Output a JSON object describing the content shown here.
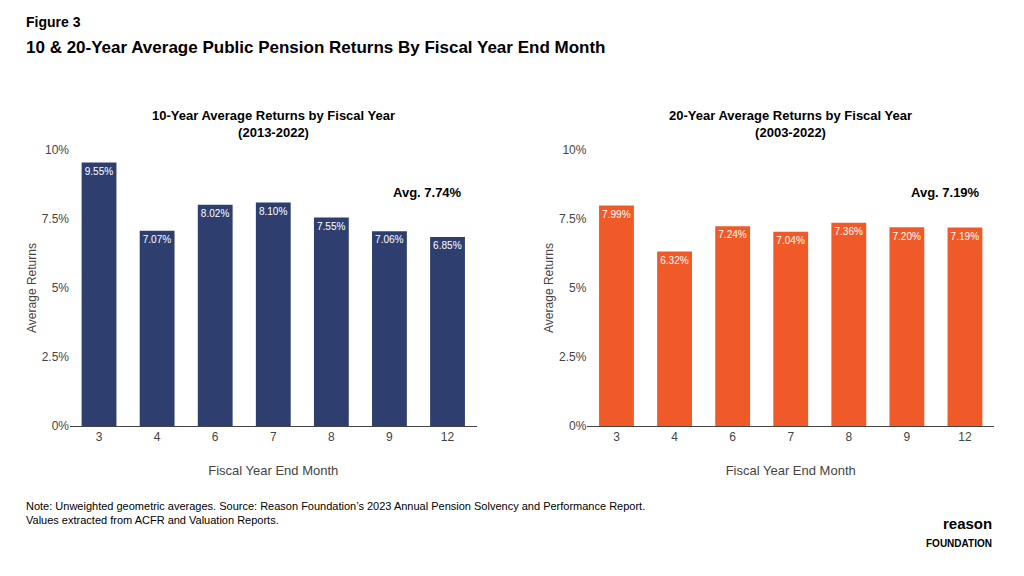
{
  "title": "Figure 3",
  "subtitle": "10 & 20-Year Average Public Pension Returns By Fiscal Year End Month",
  "annotations": [
    "Note: Unweighted geometric averages. Source: Reason Foundation’s 2023 Annual Pension Solvency and Performance Report.\nValues extracted from ACFR and Valuation Reports.",
    "reason",
    "FOUNDATION"
  ],
  "chart_data": [
    {
      "type": "bar",
      "title": "10-Year Average Returns by Fiscal Year",
      "subtitle": "(2013-2022)",
      "xlabel": "Fiscal Year End Month",
      "ylabel": "Average Returns",
      "categories": [
        "3",
        "4",
        "6",
        "7",
        "8",
        "9",
        "12"
      ],
      "values": [
        9.55,
        7.07,
        8.02,
        8.1,
        7.55,
        7.06,
        6.85
      ],
      "value_labels": [
        "9.55%",
        "7.07%",
        "8.02%",
        "8.10%",
        "7.55%",
        "7.06%",
        "6.85%"
      ],
      "data_labels": true,
      "color": "#2E3F6F",
      "ylim": [
        0,
        10
      ],
      "yticks": [
        {
          "value": 0,
          "label": "0%"
        },
        {
          "value": 2.5,
          "label": "2.5%"
        },
        {
          "value": 5,
          "label": "5%"
        },
        {
          "value": 7.5,
          "label": "7.5%"
        },
        {
          "value": 10,
          "label": "10%"
        }
      ],
      "grid": false,
      "annotations": [
        "Avg. 7.74%"
      ]
    },
    {
      "type": "bar",
      "title": "20-Year Average Returns by Fiscal Year",
      "subtitle": "(2003-2022)",
      "xlabel": "Fiscal Year End Month",
      "ylabel": "Average Returns",
      "categories": [
        "3",
        "4",
        "6",
        "7",
        "8",
        "9",
        "12"
      ],
      "values": [
        7.99,
        6.32,
        7.24,
        7.04,
        7.36,
        7.2,
        7.19
      ],
      "value_labels": [
        "7.99%",
        "6.32%",
        "7.24%",
        "7.04%",
        "7.36%",
        "7.20%",
        "7.19%"
      ],
      "data_labels": true,
      "color": "#F05A28",
      "ylim": [
        0,
        10
      ],
      "yticks": [
        {
          "value": 0,
          "label": "0%"
        },
        {
          "value": 2.5,
          "label": "2.5%"
        },
        {
          "value": 5,
          "label": "5%"
        },
        {
          "value": 7.5,
          "label": "7.5%"
        },
        {
          "value": 10,
          "label": "10%"
        }
      ],
      "grid": false,
      "annotations": [
        "Avg. 7.19%"
      ]
    }
  ]
}
